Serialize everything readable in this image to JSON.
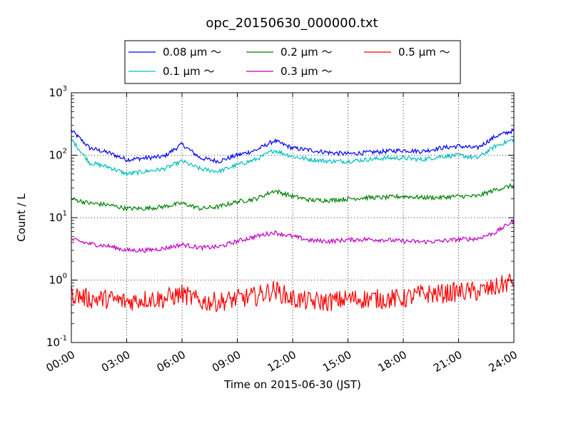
{
  "chart_data": {
    "type": "line",
    "title": "opc_20150630_000000.txt",
    "xlabel": "Time on 2015-06-30 (JST)",
    "ylabel": "Count / L",
    "yscale": "log",
    "ylim": [
      0.1,
      1000
    ],
    "xlim": [
      "2015-06-30 00:00",
      "2015-07-01 00:00"
    ],
    "grid": true,
    "legend_position": "top, above plot",
    "x_tick_labels": [
      "00:00",
      "03:00",
      "06:00",
      "09:00",
      "12:00",
      "15:00",
      "18:00",
      "21:00",
      "24:00"
    ],
    "y_tick_labels": [
      {
        "base": "10",
        "exp": "-1"
      },
      {
        "base": "10",
        "exp": "0"
      },
      {
        "base": "10",
        "exp": "1"
      },
      {
        "base": "10",
        "exp": "2"
      },
      {
        "base": "10",
        "exp": "3"
      }
    ],
    "x": [
      "00:00",
      "01:00",
      "02:00",
      "03:00",
      "04:00",
      "05:00",
      "06:00",
      "07:00",
      "08:00",
      "09:00",
      "10:00",
      "11:00",
      "12:00",
      "13:00",
      "14:00",
      "15:00",
      "16:00",
      "17:00",
      "18:00",
      "19:00",
      "20:00",
      "21:00",
      "22:00",
      "23:00",
      "24:00"
    ],
    "series": [
      {
        "name": "0.08 µm ～",
        "color": "#0000ff",
        "values": [
          250,
          130,
          110,
          85,
          90,
          95,
          150,
          90,
          80,
          100,
          120,
          170,
          130,
          120,
          110,
          105,
          110,
          115,
          120,
          115,
          130,
          140,
          130,
          200,
          250
        ]
      },
      {
        "name": "0.1 µm ～",
        "color": "#00bfbf",
        "values": [
          180,
          75,
          65,
          50,
          55,
          60,
          80,
          60,
          55,
          70,
          85,
          120,
          95,
          85,
          80,
          80,
          85,
          90,
          90,
          85,
          95,
          100,
          90,
          140,
          180
        ]
      },
      {
        "name": "0.2 µm ～",
        "color": "#008000",
        "values": [
          20,
          17,
          16,
          14,
          14,
          15,
          17,
          14,
          15,
          18,
          20,
          27,
          22,
          19,
          19,
          20,
          21,
          21,
          22,
          21,
          21,
          22,
          22,
          28,
          33
        ]
      },
      {
        "name": "0.3 µm ～",
        "color": "#bf00bf",
        "values": [
          4.5,
          3.8,
          3.5,
          3.0,
          3.0,
          3.2,
          3.7,
          3.3,
          3.4,
          4.2,
          5.0,
          5.8,
          5.0,
          4.3,
          4.2,
          4.4,
          4.5,
          4.4,
          4.2,
          4.1,
          4.2,
          4.5,
          4.6,
          5.8,
          9.0
        ]
      },
      {
        "name": "0.5 µm ～",
        "color": "#ff0000",
        "values": [
          0.6,
          0.5,
          0.5,
          0.45,
          0.5,
          0.5,
          0.6,
          0.45,
          0.45,
          0.5,
          0.55,
          0.7,
          0.5,
          0.45,
          0.45,
          0.5,
          0.5,
          0.5,
          0.5,
          0.6,
          0.6,
          0.65,
          0.65,
          0.75,
          1.0
        ]
      }
    ]
  }
}
